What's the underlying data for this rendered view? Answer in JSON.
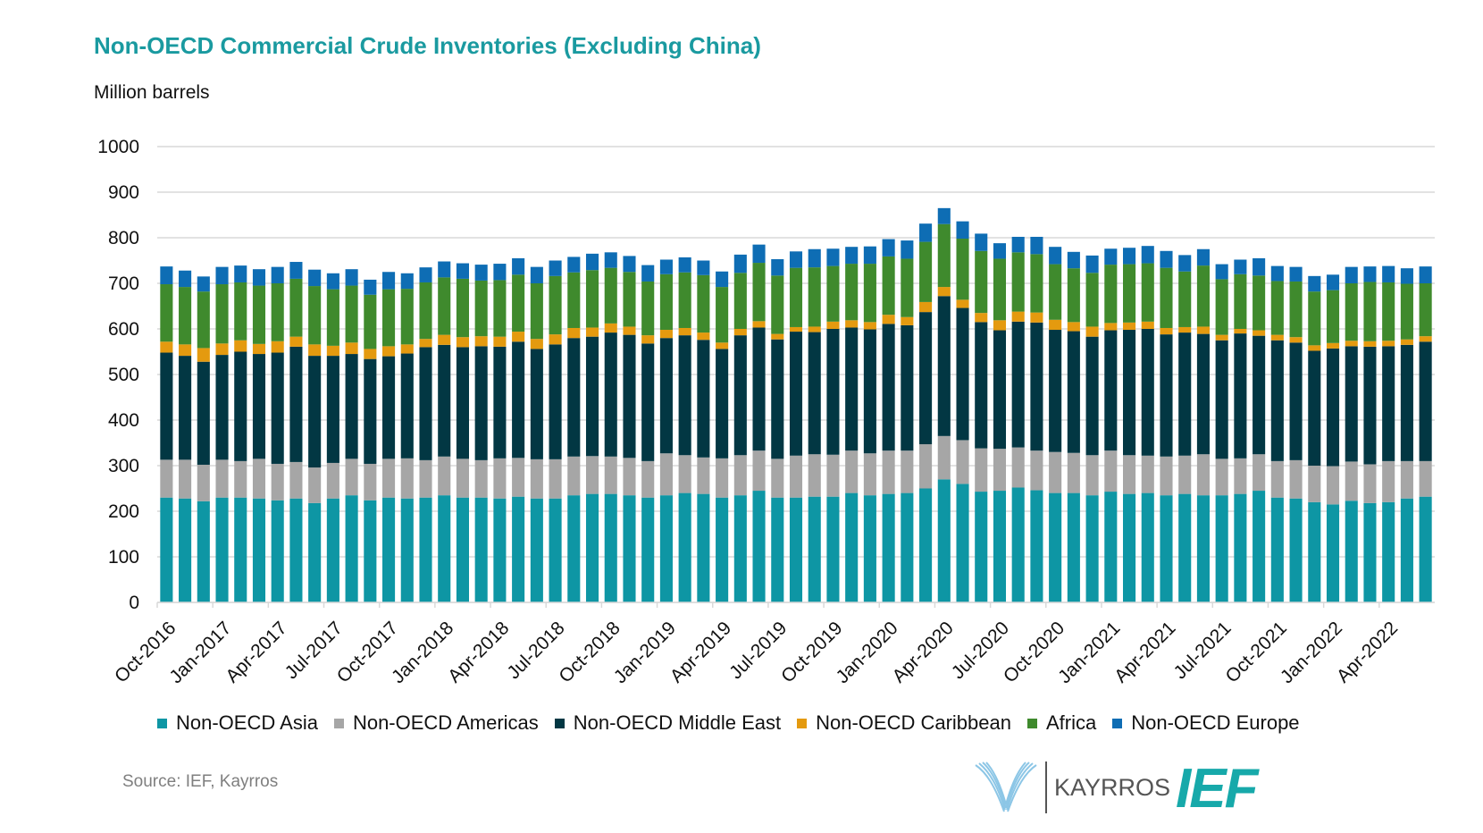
{
  "header": {
    "title": "Non-OECD Commercial Crude Inventories (Excluding China)",
    "units": "Million barrels"
  },
  "footer": {
    "source": "Source: IEF, Kayrros",
    "logo_kayrros": "KAYRROS",
    "logo_ief": "IEF"
  },
  "chart_data": {
    "type": "bar",
    "stacked": true,
    "title": "Non-OECD Commercial Crude Inventories (Excluding China)",
    "ylabel": "Million barrels",
    "xlabel": "",
    "ylim": [
      0,
      1000
    ],
    "yticks": [
      0,
      100,
      200,
      300,
      400,
      500,
      600,
      700,
      800,
      900,
      1000
    ],
    "grid": true,
    "legend_position": "bottom",
    "categories": [
      "Oct-2016",
      "Nov-2016",
      "Dec-2016",
      "Jan-2017",
      "Feb-2017",
      "Mar-2017",
      "Apr-2017",
      "May-2017",
      "Jun-2017",
      "Jul-2017",
      "Aug-2017",
      "Sep-2017",
      "Oct-2017",
      "Nov-2017",
      "Dec-2017",
      "Jan-2018",
      "Feb-2018",
      "Mar-2018",
      "Apr-2018",
      "May-2018",
      "Jun-2018",
      "Jul-2018",
      "Aug-2018",
      "Sep-2018",
      "Oct-2018",
      "Nov-2018",
      "Dec-2018",
      "Jan-2019",
      "Feb-2019",
      "Mar-2019",
      "Apr-2019",
      "May-2019",
      "Jun-2019",
      "Jul-2019",
      "Aug-2019",
      "Sep-2019",
      "Oct-2019",
      "Nov-2019",
      "Dec-2019",
      "Jan-2020",
      "Feb-2020",
      "Mar-2020",
      "Apr-2020",
      "May-2020",
      "Jun-2020",
      "Jul-2020",
      "Aug-2020",
      "Sep-2020",
      "Oct-2020",
      "Nov-2020",
      "Dec-2020",
      "Jan-2021",
      "Feb-2021",
      "Mar-2021",
      "Apr-2021",
      "May-2021",
      "Jun-2021",
      "Jul-2021",
      "Aug-2021",
      "Sep-2021",
      "Oct-2021",
      "Nov-2021",
      "Dec-2021",
      "Jan-2022",
      "Feb-2022",
      "Mar-2022",
      "Apr-2022",
      "May-2022",
      "Jun-2022"
    ],
    "tick_labels": [
      "Oct-2016",
      "Jan-2017",
      "Apr-2017",
      "Jul-2017",
      "Oct-2017",
      "Jan-2018",
      "Apr-2018",
      "Jul-2018",
      "Oct-2018",
      "Jan-2019",
      "Apr-2019",
      "Jul-2019",
      "Oct-2019",
      "Jan-2020",
      "Apr-2020",
      "Jul-2020",
      "Oct-2020",
      "Jan-2021",
      "Apr-2021",
      "Jul-2021",
      "Oct-2021",
      "Jan-2022",
      "Apr-2022"
    ],
    "series": [
      {
        "name": "Non-OECD Asia",
        "color": "#0e96a4",
        "values": [
          230,
          228,
          222,
          230,
          230,
          228,
          224,
          228,
          218,
          228,
          235,
          224,
          230,
          228,
          230,
          235,
          230,
          230,
          228,
          232,
          228,
          228,
          235,
          238,
          238,
          235,
          230,
          235,
          240,
          238,
          230,
          235,
          245,
          230,
          230,
          232,
          232,
          240,
          235,
          238,
          240,
          250,
          270,
          260,
          243,
          245,
          252,
          246,
          240,
          240,
          235,
          243,
          238,
          240,
          235,
          238,
          235,
          235,
          238,
          245,
          230,
          228,
          220,
          215,
          223,
          218,
          220,
          228,
          232
        ]
      },
      {
        "name": "Non-OECD Americas",
        "color": "#a6a6a6",
        "values": [
          83,
          85,
          80,
          83,
          80,
          87,
          80,
          80,
          78,
          78,
          80,
          80,
          85,
          88,
          82,
          85,
          85,
          82,
          88,
          85,
          86,
          86,
          85,
          83,
          82,
          82,
          80,
          92,
          83,
          80,
          86,
          88,
          88,
          85,
          92,
          93,
          92,
          93,
          92,
          95,
          93,
          97,
          95,
          96,
          95,
          92,
          88,
          87,
          90,
          88,
          88,
          90,
          85,
          82,
          85,
          84,
          90,
          80,
          78,
          80,
          80,
          84,
          80,
          84,
          86,
          85,
          90,
          82,
          78
        ]
      },
      {
        "name": "Non-OECD Middle East",
        "color": "#023743",
        "values": [
          235,
          228,
          226,
          230,
          240,
          230,
          244,
          253,
          245,
          235,
          230,
          230,
          225,
          230,
          248,
          245,
          245,
          250,
          245,
          255,
          242,
          252,
          260,
          262,
          272,
          270,
          258,
          253,
          263,
          258,
          240,
          263,
          270,
          262,
          272,
          268,
          276,
          270,
          272,
          278,
          275,
          290,
          307,
          290,
          277,
          260,
          276,
          281,
          268,
          267,
          260,
          264,
          275,
          278,
          268,
          270,
          264,
          260,
          274,
          260,
          265,
          258,
          252,
          258,
          253,
          258,
          252,
          255,
          262
        ]
      },
      {
        "name": "Non-OECD Caribbean",
        "color": "#e49a0f",
        "values": [
          24,
          25,
          30,
          25,
          25,
          22,
          25,
          22,
          25,
          22,
          25,
          22,
          22,
          20,
          18,
          22,
          22,
          22,
          22,
          22,
          22,
          22,
          22,
          20,
          20,
          18,
          18,
          18,
          16,
          16,
          14,
          14,
          14,
          12,
          10,
          12,
          16,
          16,
          16,
          20,
          18,
          22,
          20,
          18,
          20,
          22,
          22,
          22,
          22,
          20,
          22,
          16,
          16,
          16,
          14,
          12,
          16,
          12,
          10,
          12,
          12,
          12,
          12,
          12,
          12,
          12,
          12,
          12,
          12
        ]
      },
      {
        "name": "Africa",
        "color": "#3f8a2d",
        "values": [
          126,
          126,
          124,
          130,
          127,
          128,
          127,
          127,
          128,
          124,
          125,
          119,
          125,
          122,
          124,
          126,
          128,
          122,
          124,
          125,
          122,
          128,
          122,
          126,
          122,
          120,
          118,
          122,
          122,
          126,
          122,
          123,
          128,
          128,
          130,
          130,
          122,
          124,
          128,
          128,
          128,
          132,
          138,
          134,
          136,
          135,
          130,
          128,
          122,
          118,
          118,
          128,
          128,
          128,
          132,
          122,
          134,
          122,
          120,
          120,
          118,
          122,
          118,
          116,
          126,
          130,
          128,
          122,
          116
        ]
      },
      {
        "name": "Non-OECD Europe",
        "color": "#0e6db4",
        "values": [
          39,
          36,
          33,
          38,
          37,
          36,
          36,
          37,
          36,
          35,
          36,
          33,
          38,
          34,
          33,
          35,
          34,
          35,
          36,
          36,
          36,
          34,
          34,
          36,
          34,
          35,
          36,
          32,
          33,
          32,
          34,
          40,
          40,
          36,
          36,
          40,
          38,
          37,
          38,
          38,
          40,
          40,
          35,
          38,
          38,
          34,
          34,
          38,
          38,
          36,
          38,
          35,
          36,
          38,
          37,
          36,
          36,
          33,
          32,
          38,
          33,
          32,
          34,
          34,
          36,
          34,
          36,
          34,
          37
        ]
      }
    ]
  }
}
